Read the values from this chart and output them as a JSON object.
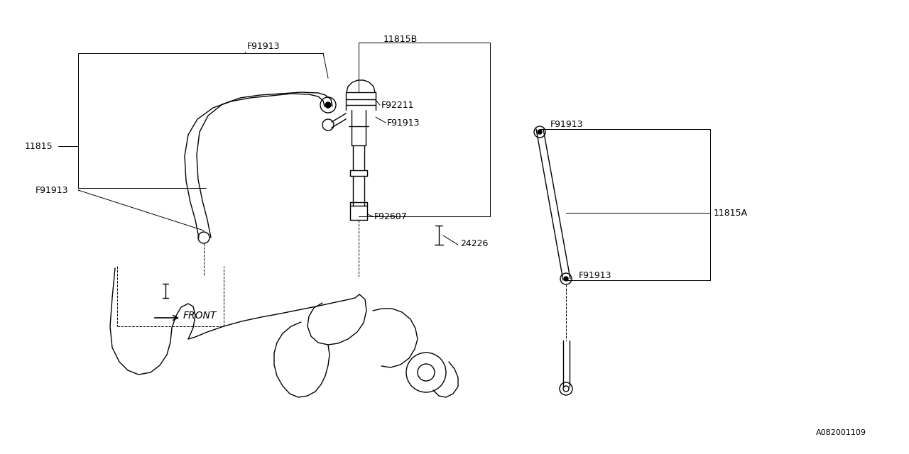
{
  "bg_color": "#ffffff",
  "lc": "#000000",
  "lw": 1.0,
  "tlw": 0.7,
  "fs": 9,
  "watermark": "A082001109",
  "figsize": [
    12.8,
    6.4
  ],
  "dpi": 100,
  "xlim": [
    0,
    1280
  ],
  "ylim": [
    0,
    640
  ]
}
